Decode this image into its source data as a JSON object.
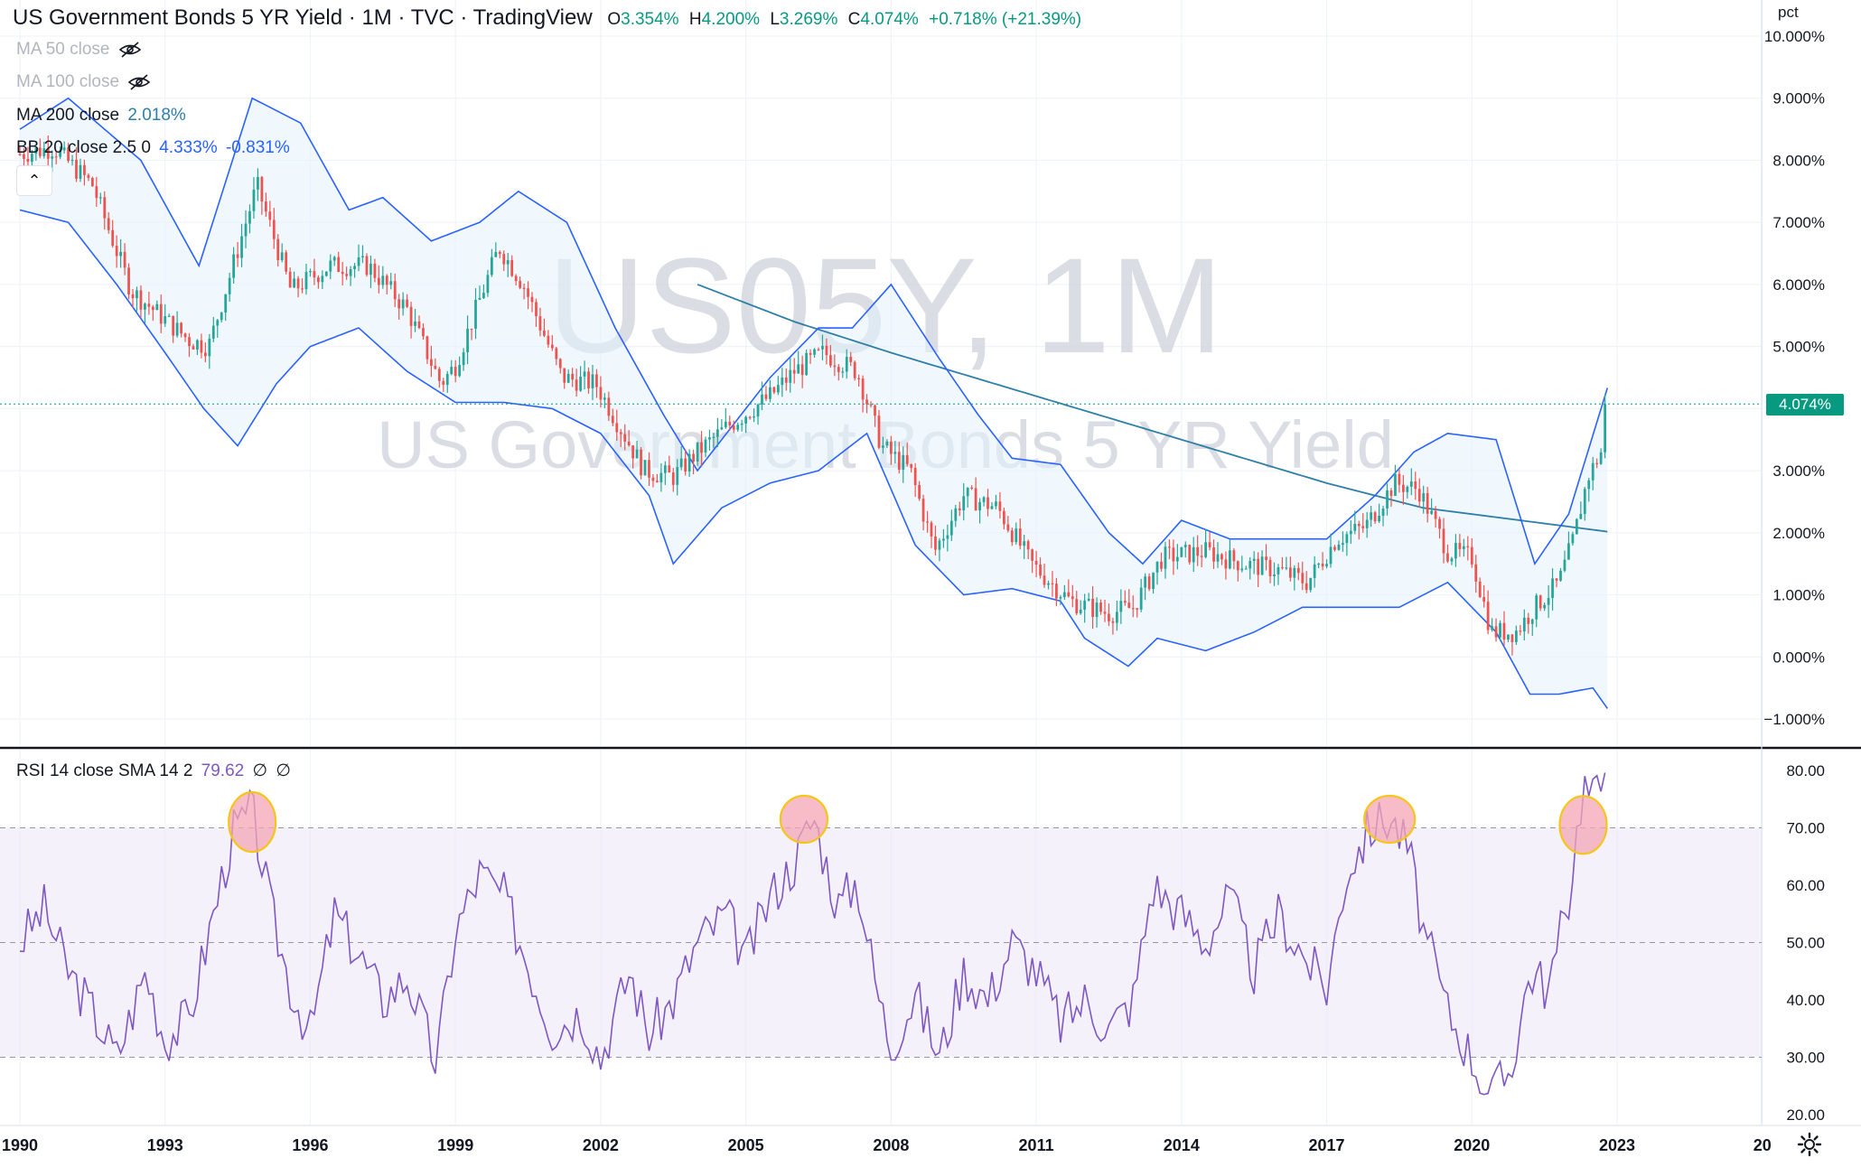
{
  "header": {
    "title": "US Government Bonds 5 YR Yield",
    "interval": "1M",
    "exchange": "TVC",
    "source": "TradingView",
    "sep": "·",
    "ohlc": {
      "open_label": "O",
      "open": "3.354%",
      "high_label": "H",
      "high": "4.200%",
      "low_label": "L",
      "low": "3.269%",
      "close_label": "C",
      "close": "4.074%",
      "change": "+0.718% (+21.39%)"
    }
  },
  "legends": {
    "ma50": {
      "label": "MA 50 close",
      "hidden": true
    },
    "ma100": {
      "label": "MA 100 close",
      "hidden": true
    },
    "ma200": {
      "label": "MA 200 close",
      "value": "2.018%"
    },
    "bb": {
      "label": "BB 20 close 2.5 0",
      "upper": "4.333%",
      "lower": "-0.831%"
    },
    "rsi": {
      "label": "RSI 14 close SMA 14 2",
      "value": "79.62",
      "extra1": "∅",
      "extra2": "∅"
    }
  },
  "watermark": {
    "symbol": "US05Y, 1M",
    "description": "US Government Bonds 5 YR Yield"
  },
  "price_axis": {
    "unit": "pct",
    "ticks": [
      "10.000%",
      "9.000%",
      "8.000%",
      "7.000%",
      "6.000%",
      "5.000%",
      "4.000%",
      "3.000%",
      "2.000%",
      "1.000%",
      "0.000%",
      "−1.000%"
    ],
    "last_price_tag": "4.074%"
  },
  "rsi_axis": {
    "ticks": [
      "80.00",
      "70.00",
      "60.00",
      "50.00",
      "40.00",
      "30.00",
      "20.00"
    ]
  },
  "time_axis": {
    "ticks": [
      "1990",
      "1993",
      "1996",
      "1999",
      "2002",
      "2005",
      "2008",
      "2011",
      "2014",
      "2017",
      "2020",
      "2023",
      "20"
    ]
  },
  "colors": {
    "up": "#26a69a",
    "down": "#ef5350",
    "bb": "#2962ff",
    "bb_fill": "#e3f2fd",
    "ma200": "#2e7fa8",
    "rsi": "#7e57c2",
    "rsi_band": "#ede7f6",
    "highlight_fill": "#f4a6b5",
    "highlight_stroke": "#f5c518",
    "price_tag": "#089981"
  },
  "icons": {
    "eye_off": "eye-off-icon",
    "collapse": "chevron-up-icon",
    "settings": "gear-icon"
  },
  "chart_data": [
    {
      "type": "candlestick",
      "title": "US Government Bonds 5 YR Yield · 1M · TVC",
      "ylabel": "pct",
      "ylim": [
        -1.2,
        10
      ],
      "x_range": [
        "1990-01",
        "2022-10"
      ],
      "anchors_x": [
        1990.0,
        1990.7,
        1991.5,
        1992.3,
        1993.5,
        1993.9,
        1994.9,
        1995.6,
        1996.4,
        1997.2,
        1998.0,
        1998.7,
        1999.0,
        1999.9,
        2000.4,
        2001.2,
        2001.9,
        2002.9,
        2003.5,
        2004.0,
        2004.6,
        2005.5,
        2006.0,
        2006.6,
        2007.3,
        2007.8,
        2008.4,
        2008.9,
        2009.5,
        2010.2,
        2010.9,
        2011.7,
        2012.5,
        2013.0,
        2013.6,
        2014.5,
        2015.3,
        2016.0,
        2016.6,
        2017.2,
        2017.8,
        2018.4,
        2018.9,
        2019.5,
        2020.0,
        2020.4,
        2020.9,
        2021.3,
        2021.8,
        2022.1,
        2022.4,
        2022.7,
        2022.8
      ],
      "anchors_close": [
        8.1,
        8.2,
        7.6,
        5.9,
        5.1,
        5.0,
        7.6,
        5.9,
        6.3,
        6.3,
        5.6,
        4.4,
        4.7,
        6.6,
        6.0,
        4.5,
        4.4,
        3.0,
        2.9,
        3.3,
        3.7,
        4.2,
        4.6,
        4.9,
        4.6,
        3.4,
        3.0,
        1.7,
        2.6,
        2.4,
        1.5,
        0.9,
        0.7,
        0.8,
        1.6,
        1.7,
        1.5,
        1.4,
        1.2,
        1.9,
        2.1,
        2.8,
        2.7,
        1.7,
        1.6,
        0.4,
        0.4,
        0.8,
        1.2,
        1.9,
        2.9,
        3.35,
        4.074
      ],
      "bb_upper_anchors_x": [
        1990.0,
        1991.0,
        1992.5,
        1993.7,
        1994.8,
        1995.8,
        1996.8,
        1997.5,
        1998.5,
        1999.5,
        2000.3,
        2001.3,
        2002.3,
        2003.3,
        2004.0,
        2004.8,
        2005.5,
        2006.5,
        2007.2,
        2008.0,
        2009.0,
        2009.8,
        2010.5,
        2011.5,
        2012.5,
        2013.2,
        2014.0,
        2015.0,
        2016.0,
        2017.0,
        2018.0,
        2018.8,
        2019.5,
        2020.5,
        2021.3,
        2022.0,
        2022.8
      ],
      "bb_upper": [
        8.5,
        9.0,
        8.0,
        6.3,
        9.0,
        8.6,
        7.2,
        7.4,
        6.7,
        7.0,
        7.5,
        7.0,
        5.3,
        3.9,
        3.0,
        3.8,
        4.5,
        5.3,
        5.3,
        6.0,
        4.8,
        3.9,
        3.2,
        3.1,
        2.0,
        1.5,
        2.2,
        1.9,
        1.9,
        1.9,
        2.6,
        3.3,
        3.6,
        3.5,
        1.5,
        2.3,
        4.333
      ],
      "bb_lower_anchors_x": [
        1990.0,
        1991.0,
        1992.0,
        1993.0,
        1993.8,
        1994.5,
        1995.3,
        1996.0,
        1997.0,
        1998.0,
        1999.0,
        2000.0,
        2001.0,
        2002.0,
        2003.0,
        2003.5,
        2004.5,
        2005.5,
        2006.5,
        2007.5,
        2008.5,
        2009.5,
        2010.5,
        2011.5,
        2012.0,
        2012.9,
        2013.5,
        2014.5,
        2015.5,
        2016.5,
        2017.5,
        2018.5,
        2019.5,
        2020.5,
        2021.2,
        2021.8,
        2022.5,
        2022.8
      ],
      "bb_lower": [
        7.2,
        7.0,
        6.0,
        4.9,
        4.0,
        3.4,
        4.4,
        5.0,
        5.3,
        4.6,
        4.1,
        4.1,
        4.0,
        3.6,
        2.6,
        1.5,
        2.4,
        2.8,
        3.0,
        3.6,
        1.8,
        1.0,
        1.1,
        0.9,
        0.3,
        -0.15,
        0.3,
        0.1,
        0.4,
        0.8,
        0.8,
        0.8,
        1.2,
        0.4,
        -0.6,
        -0.6,
        -0.5,
        -0.831
      ],
      "ma200": {
        "x": [
          2004.0,
          2006.0,
          2008.0,
          2011.0,
          2014.0,
          2017.0,
          2019.0,
          2021.0,
          2022.8
        ],
        "y": [
          6.0,
          5.4,
          4.9,
          4.2,
          3.5,
          2.8,
          2.4,
          2.2,
          2.018
        ]
      }
    },
    {
      "type": "line",
      "title": "RSI 14 close SMA 14 2",
      "ylim": [
        20,
        82
      ],
      "bands": [
        30,
        50,
        70
      ],
      "x": [
        1990.0,
        1990.5,
        1991.0,
        1991.5,
        1992.0,
        1992.6,
        1993.0,
        1993.5,
        1994.0,
        1994.4,
        1994.8,
        1995.2,
        1995.6,
        1996.0,
        1996.5,
        1997.0,
        1997.5,
        1998.0,
        1998.6,
        1999.0,
        1999.5,
        2000.0,
        2000.6,
        2001.0,
        2001.6,
        2002.0,
        2002.6,
        2003.0,
        2003.5,
        2004.0,
        2004.6,
        2005.0,
        2005.5,
        2006.0,
        2006.4,
        2006.9,
        2007.3,
        2007.7,
        2008.0,
        2008.5,
        2009.0,
        2009.5,
        2010.0,
        2010.5,
        2011.0,
        2011.5,
        2012.0,
        2012.5,
        2013.0,
        2013.4,
        2014.0,
        2014.5,
        2015.0,
        2015.5,
        2016.0,
        2016.5,
        2017.0,
        2017.4,
        2017.9,
        2018.3,
        2018.7,
        2019.0,
        2019.5,
        2020.0,
        2020.4,
        2020.8,
        2021.2,
        2021.6,
        2022.0,
        2022.3,
        2022.5,
        2022.8
      ],
      "y": [
        50,
        56,
        45,
        38,
        30,
        45,
        33,
        37,
        55,
        69,
        73,
        55,
        42,
        34,
        55,
        48,
        40,
        44,
        29,
        52,
        62,
        58,
        44,
        35,
        38,
        30,
        45,
        34,
        40,
        50,
        55,
        47,
        58,
        64,
        72,
        56,
        61,
        42,
        32,
        41,
        30,
        45,
        40,
        50,
        45,
        36,
        40,
        35,
        40,
        60,
        55,
        50,
        58,
        45,
        55,
        48,
        42,
        62,
        70,
        72,
        66,
        52,
        38,
        30,
        23,
        28,
        45,
        42,
        58,
        78,
        75,
        79.62
      ],
      "highlights_x": [
        1994.8,
        2006.2,
        2018.3,
        2022.3
      ]
    }
  ]
}
